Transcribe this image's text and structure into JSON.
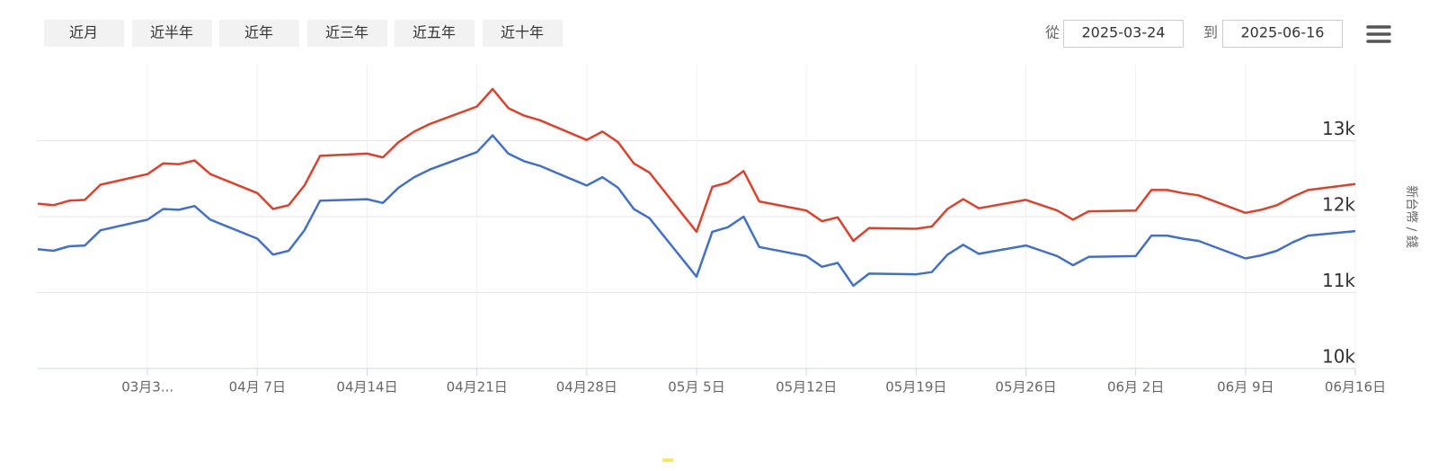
{
  "range_buttons": [
    "近月",
    "近半年",
    "近年",
    "近三年",
    "近五年",
    "近十年"
  ],
  "date_range": {
    "from_label": "從",
    "from": "2025-03-24",
    "to_label": "到",
    "to": "2025-06-16"
  },
  "chart_data": {
    "type": "line",
    "y_axis_label": "新台幣 / 錢",
    "x": [
      "2025-03-24",
      "2025-03-25",
      "2025-03-26",
      "2025-03-27",
      "2025-03-28",
      "2025-03-31",
      "2025-04-01",
      "2025-04-02",
      "2025-04-03",
      "2025-04-04",
      "2025-04-07",
      "2025-04-08",
      "2025-04-09",
      "2025-04-10",
      "2025-04-11",
      "2025-04-14",
      "2025-04-15",
      "2025-04-16",
      "2025-04-17",
      "2025-04-18",
      "2025-04-21",
      "2025-04-22",
      "2025-04-23",
      "2025-04-24",
      "2025-04-25",
      "2025-04-28",
      "2025-04-29",
      "2025-04-30",
      "2025-05-01",
      "2025-05-02",
      "2025-05-05",
      "2025-05-06",
      "2025-05-07",
      "2025-05-08",
      "2025-05-09",
      "2025-05-12",
      "2025-05-13",
      "2025-05-14",
      "2025-05-15",
      "2025-05-16",
      "2025-05-19",
      "2025-05-20",
      "2025-05-21",
      "2025-05-22",
      "2025-05-23",
      "2025-05-26",
      "2025-05-27",
      "2025-05-28",
      "2025-05-29",
      "2025-05-30",
      "2025-06-02",
      "2025-06-03",
      "2025-06-04",
      "2025-06-05",
      "2025-06-06",
      "2025-06-09",
      "2025-06-10",
      "2025-06-11",
      "2025-06-12",
      "2025-06-13",
      "2025-06-16"
    ],
    "series": [
      {
        "color": "#d9432e",
        "values": [
          12170,
          12150,
          12210,
          12220,
          12420,
          12560,
          12700,
          12690,
          12740,
          12560,
          12310,
          12100,
          12150,
          12410,
          12800,
          12830,
          12780,
          12980,
          13120,
          13220,
          13450,
          13680,
          13430,
          13330,
          13270,
          13010,
          13120,
          12980,
          12700,
          12580,
          11800,
          12390,
          12450,
          12600,
          12200,
          12080,
          11940,
          11990,
          11680,
          11850,
          11840,
          11870,
          12100,
          12230,
          12110,
          12220,
          12150,
          12080,
          11960,
          12070,
          12080,
          12350,
          12350,
          12310,
          12280,
          12050,
          12090,
          12150,
          12260,
          12350,
          12430
        ]
      },
      {
        "color": "#4470c4",
        "values": [
          11570,
          11550,
          11610,
          11620,
          11820,
          11960,
          12100,
          12090,
          12140,
          11960,
          11710,
          11500,
          11550,
          11820,
          12210,
          12230,
          12180,
          12380,
          12520,
          12620,
          12850,
          13070,
          12830,
          12730,
          12670,
          12410,
          12520,
          12380,
          12100,
          11980,
          11210,
          11800,
          11860,
          12000,
          11600,
          11480,
          11340,
          11390,
          11090,
          11250,
          11240,
          11270,
          11500,
          11630,
          11510,
          11620,
          11550,
          11480,
          11360,
          11470,
          11480,
          11750,
          11750,
          11710,
          11680,
          11450,
          11490,
          11550,
          11660,
          11750,
          11810
        ]
      }
    ],
    "xlim": [
      "2025-03-24",
      "2025-06-16"
    ],
    "xticks": [
      {
        "value": "2025-03-31",
        "label": "03月3..."
      },
      {
        "value": "2025-04-07",
        "label": "04月 7日"
      },
      {
        "value": "2025-04-14",
        "label": "04月14日"
      },
      {
        "value": "2025-04-21",
        "label": "04月21日"
      },
      {
        "value": "2025-04-28",
        "label": "04月28日"
      },
      {
        "value": "2025-05-05",
        "label": "05月 5日"
      },
      {
        "value": "2025-05-12",
        "label": "05月12日"
      },
      {
        "value": "2025-05-19",
        "label": "05月19日"
      },
      {
        "value": "2025-05-26",
        "label": "05月26日"
      },
      {
        "value": "2025-06-02",
        "label": "06月 2日"
      },
      {
        "value": "2025-06-09",
        "label": "06月 9日"
      },
      {
        "value": "2025-06-16",
        "label": "06月16日"
      }
    ],
    "ylim": [
      10000,
      14000
    ],
    "yticks": [
      {
        "value": 10000,
        "label": "10k"
      },
      {
        "value": 11000,
        "label": "11k"
      },
      {
        "value": 12000,
        "label": "12k"
      },
      {
        "value": 13000,
        "label": "13k"
      }
    ],
    "grid": true
  }
}
